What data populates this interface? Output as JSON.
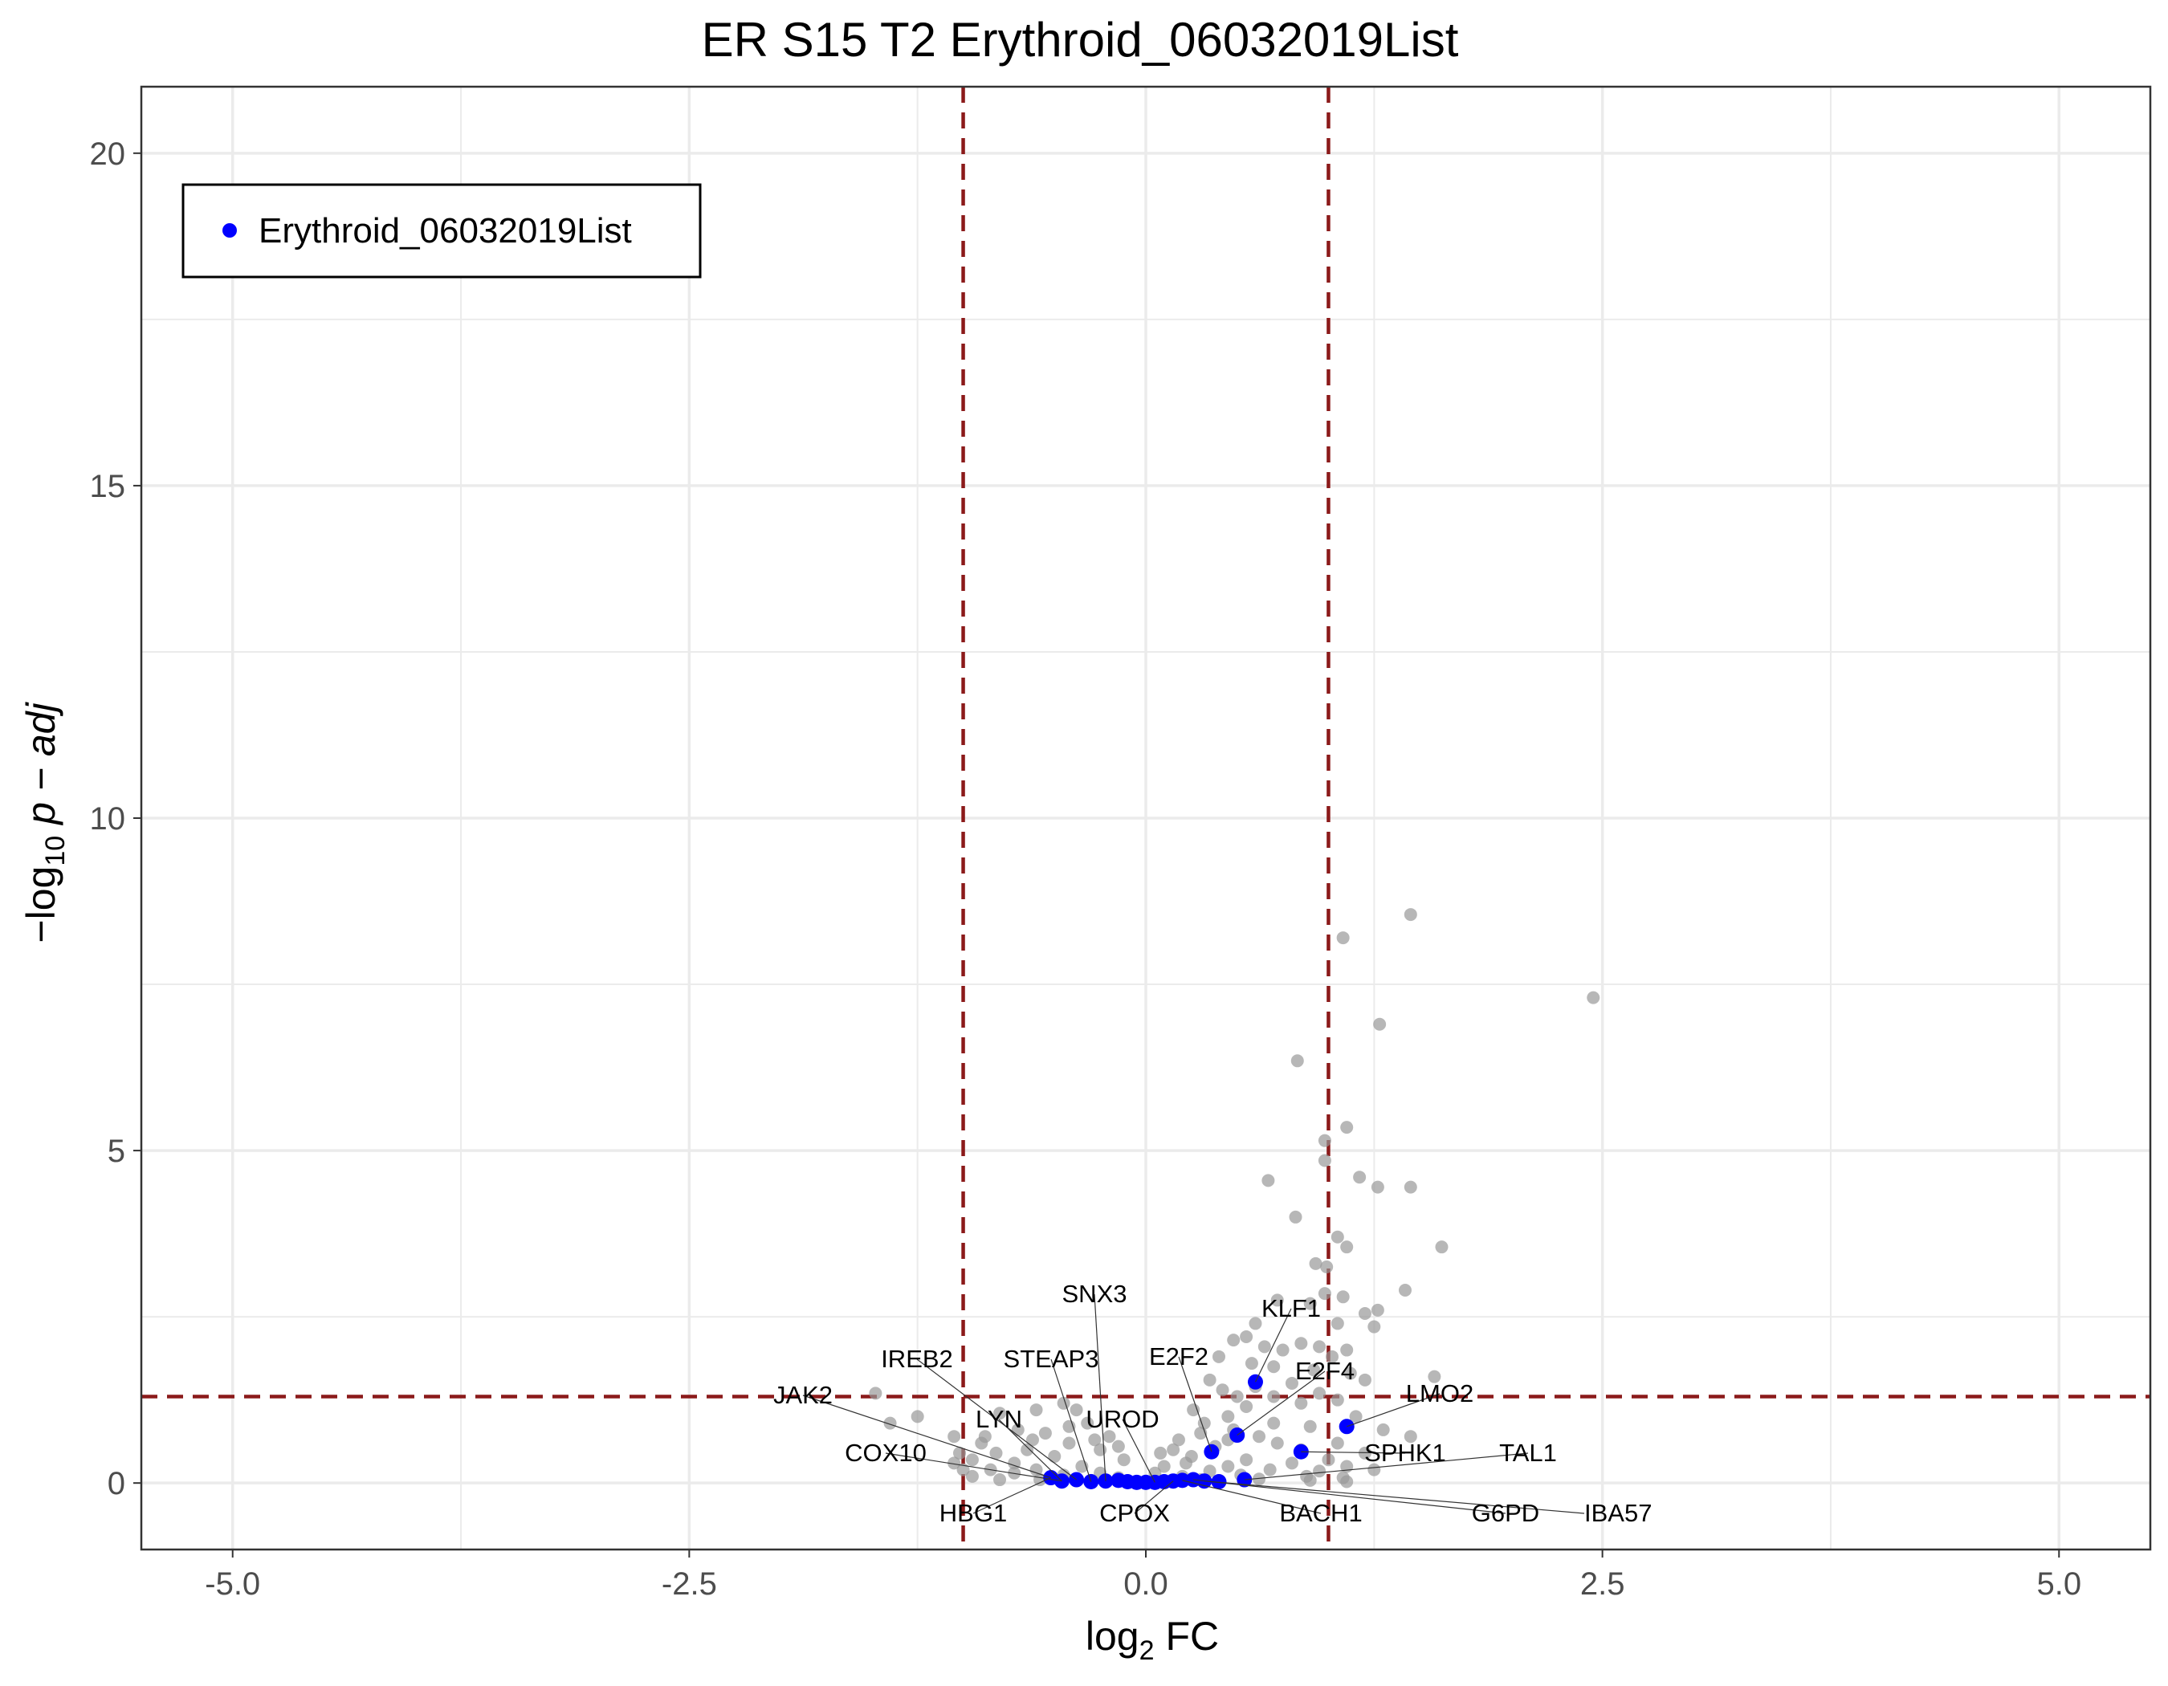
{
  "chart_data": {
    "type": "scatter",
    "title": "ER S15 T2 Erythroid_06032019List",
    "xlabel": {
      "prefix": "log",
      "sub": "2",
      "suffix": " FC"
    },
    "ylabel": {
      "prefix": "−log",
      "sub": "10",
      "suffix": " p − adj"
    },
    "xlim": [
      -5.5,
      5.5
    ],
    "ylim": [
      -1,
      21
    ],
    "x_ticks": [
      {
        "value": -5,
        "label": "-5.0"
      },
      {
        "value": -2.5,
        "label": "-2.5"
      },
      {
        "value": 0,
        "label": "0.0"
      },
      {
        "value": 2.5,
        "label": "2.5"
      },
      {
        "value": 5,
        "label": "5.0"
      }
    ],
    "y_ticks": [
      {
        "value": 0,
        "label": "0"
      },
      {
        "value": 5,
        "label": "5"
      },
      {
        "value": 10,
        "label": "10"
      },
      {
        "value": 15,
        "label": "15"
      },
      {
        "value": 20,
        "label": "20"
      }
    ],
    "grid": true,
    "legend_position": "top-left",
    "thresholds": {
      "fc": [
        -1,
        1
      ],
      "padj_log10": 1.3
    },
    "colors": {
      "background": "#808080",
      "highlight": "#0000ff",
      "threshold": "#8b1a1a"
    },
    "series": [
      {
        "name": "",
        "color": "#999999",
        "points": [
          [
            1.45,
            8.55
          ],
          [
            1.08,
            8.2
          ],
          [
            2.45,
            7.3
          ],
          [
            1.28,
            6.9
          ],
          [
            0.83,
            6.35
          ],
          [
            1.1,
            5.35
          ],
          [
            0.98,
            5.15
          ],
          [
            0.98,
            4.85
          ],
          [
            1.17,
            4.6
          ],
          [
            0.67,
            4.55
          ],
          [
            1.27,
            4.45
          ],
          [
            1.45,
            4.45
          ],
          [
            0.82,
            4.0
          ],
          [
            1.05,
            3.7
          ],
          [
            1.62,
            3.55
          ],
          [
            1.1,
            3.55
          ],
          [
            0.93,
            3.3
          ],
          [
            0.99,
            3.25
          ],
          [
            1.42,
            2.9
          ],
          [
            0.98,
            2.85
          ],
          [
            1.08,
            2.8
          ],
          [
            0.72,
            2.75
          ],
          [
            0.9,
            2.7
          ],
          [
            1.2,
            2.55
          ],
          [
            1.27,
            2.6
          ],
          [
            0.6,
            2.4
          ],
          [
            1.05,
            2.4
          ],
          [
            1.25,
            2.35
          ],
          [
            0.48,
            2.15
          ],
          [
            0.55,
            2.2
          ],
          [
            0.85,
            2.1
          ],
          [
            0.65,
            2.05
          ],
          [
            0.75,
            2.0
          ],
          [
            0.95,
            2.05
          ],
          [
            1.1,
            2.0
          ],
          [
            0.4,
            1.9
          ],
          [
            1.02,
            1.9
          ],
          [
            0.58,
            1.8
          ],
          [
            0.7,
            1.75
          ],
          [
            0.92,
            1.7
          ],
          [
            1.12,
            1.65
          ],
          [
            1.58,
            1.6
          ],
          [
            0.35,
            1.55
          ],
          [
            1.2,
            1.55
          ],
          [
            0.8,
            1.5
          ],
          [
            -0.45,
            1.2
          ],
          [
            -0.6,
            1.1
          ],
          [
            -0.38,
            1.1
          ],
          [
            0.26,
            1.1
          ],
          [
            0.55,
            1.15
          ],
          [
            -0.8,
            1.05
          ],
          [
            -1.25,
            1.0
          ],
          [
            0.45,
            1.0
          ],
          [
            1.15,
            1.0
          ],
          [
            -1.4,
            0.9
          ],
          [
            -0.32,
            0.9
          ],
          [
            0.32,
            0.9
          ],
          [
            0.9,
            0.85
          ],
          [
            1.3,
            0.8
          ],
          [
            -0.7,
            0.8
          ],
          [
            -0.55,
            0.75
          ],
          [
            -0.2,
            0.7
          ],
          [
            0.18,
            0.65
          ],
          [
            0.62,
            0.7
          ],
          [
            1.45,
            0.7
          ],
          [
            -0.9,
            0.6
          ],
          [
            -0.42,
            0.6
          ],
          [
            0.72,
            0.6
          ],
          [
            1.05,
            0.6
          ],
          [
            -0.65,
            0.5
          ],
          [
            -0.25,
            0.5
          ],
          [
            0.15,
            0.5
          ],
          [
            0.38,
            0.55
          ],
          [
            0.85,
            0.5
          ],
          [
            1.2,
            0.45
          ],
          [
            -0.82,
            0.45
          ],
          [
            -0.5,
            0.4
          ],
          [
            -0.12,
            0.35
          ],
          [
            0.25,
            0.4
          ],
          [
            0.55,
            0.35
          ],
          [
            1.0,
            0.35
          ],
          [
            -0.95,
            0.35
          ],
          [
            -0.72,
            0.3
          ],
          [
            -0.35,
            0.25
          ],
          [
            0.1,
            0.25
          ],
          [
            0.45,
            0.25
          ],
          [
            0.8,
            0.3
          ],
          [
            1.1,
            0.25
          ],
          [
            -1.05,
            0.3
          ],
          [
            -0.85,
            0.2
          ],
          [
            -0.6,
            0.2
          ],
          [
            -0.25,
            0.15
          ],
          [
            0.05,
            0.15
          ],
          [
            0.35,
            0.18
          ],
          [
            0.68,
            0.2
          ],
          [
            0.95,
            0.18
          ],
          [
            1.25,
            0.2
          ],
          [
            -1.48,
            1.35
          ],
          [
            -0.72,
            0.15
          ],
          [
            -0.45,
            0.12
          ],
          [
            -0.15,
            0.08
          ],
          [
            0.2,
            0.1
          ],
          [
            0.52,
            0.12
          ],
          [
            0.88,
            0.1
          ],
          [
            1.08,
            0.08
          ],
          [
            -0.95,
            0.1
          ],
          [
            -0.8,
            0.05
          ],
          [
            -0.58,
            0.05
          ],
          [
            -0.3,
            0.04
          ],
          [
            0.0,
            0.03
          ],
          [
            0.3,
            0.05
          ],
          [
            0.62,
            0.06
          ],
          [
            0.9,
            0.04
          ],
          [
            1.1,
            0.02
          ],
          [
            -1.0,
            0.2
          ],
          [
            0.5,
            1.3
          ],
          [
            0.7,
            1.3
          ],
          [
            0.95,
            1.35
          ],
          [
            0.42,
            1.4
          ],
          [
            0.6,
            1.45
          ],
          [
            1.05,
            1.25
          ],
          [
            0.85,
            1.2
          ],
          [
            0.48,
            0.8
          ],
          [
            0.3,
            0.75
          ],
          [
            0.7,
            0.9
          ],
          [
            -0.42,
            0.85
          ],
          [
            -0.28,
            0.65
          ],
          [
            -0.15,
            0.55
          ],
          [
            0.08,
            0.45
          ],
          [
            0.22,
            0.3
          ],
          [
            -1.02,
            0.45
          ],
          [
            -1.05,
            0.7
          ],
          [
            -0.88,
            0.7
          ],
          [
            -0.62,
            0.65
          ],
          [
            0.45,
            0.65
          ]
        ]
      },
      {
        "name": "Erythroid_06032019List",
        "color": "#0000ff",
        "points": [
          [
            0.6,
            1.52
          ],
          [
            0.5,
            0.72
          ],
          [
            0.36,
            0.47
          ],
          [
            0.85,
            0.47
          ],
          [
            1.1,
            0.85
          ],
          [
            -0.52,
            0.08
          ],
          [
            -0.46,
            0.03
          ],
          [
            -0.38,
            0.05
          ],
          [
            -0.3,
            0.02
          ],
          [
            -0.22,
            0.03
          ],
          [
            -0.15,
            0.04
          ],
          [
            -0.1,
            0.02
          ],
          [
            -0.05,
            0.01
          ],
          [
            0.0,
            0.01
          ],
          [
            0.05,
            0.01
          ],
          [
            0.1,
            0.02
          ],
          [
            0.15,
            0.03
          ],
          [
            0.2,
            0.04
          ],
          [
            0.26,
            0.05
          ],
          [
            0.32,
            0.03
          ],
          [
            0.4,
            0.02
          ],
          [
            0.54,
            0.05
          ]
        ]
      }
    ],
    "annotations": [
      {
        "gene": "KLF1",
        "x": 0.6,
        "y": 1.52
      },
      {
        "gene": "E2F4",
        "x": 0.5,
        "y": 0.72
      },
      {
        "gene": "E2F2",
        "x": 0.36,
        "y": 0.47
      },
      {
        "gene": "LMO2",
        "x": 1.1,
        "y": 0.85
      },
      {
        "gene": "SPHK1",
        "x": 0.85,
        "y": 0.47
      },
      {
        "gene": "TAL1",
        "x": 0.54,
        "y": 0.05
      },
      {
        "gene": "IBA57",
        "x": 0.32,
        "y": 0.03
      },
      {
        "gene": "G6PD",
        "x": 0.26,
        "y": 0.05
      },
      {
        "gene": "BACH1",
        "x": 0.2,
        "y": 0.04
      },
      {
        "gene": "CPOX",
        "x": 0.15,
        "y": 0.03
      },
      {
        "gene": "UROD",
        "x": 0.05,
        "y": 0.01
      },
      {
        "gene": "SNX3",
        "x": -0.22,
        "y": 0.03
      },
      {
        "gene": "STEAP3",
        "x": -0.3,
        "y": 0.02
      },
      {
        "gene": "IREB2",
        "x": -0.38,
        "y": 0.05
      },
      {
        "gene": "LYN",
        "x": -0.46,
        "y": 0.03
      },
      {
        "gene": "JAK2",
        "x": -0.52,
        "y": 0.08
      },
      {
        "gene": "COX10",
        "x": -0.46,
        "y": 0.03
      },
      {
        "gene": "HBG1",
        "x": -0.52,
        "y": 0.08
      }
    ]
  }
}
